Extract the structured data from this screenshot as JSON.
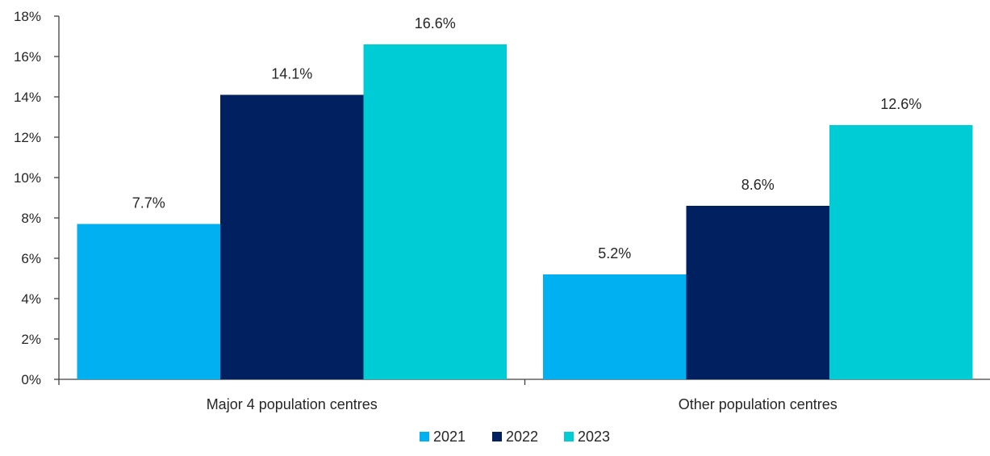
{
  "chart_data": {
    "type": "bar",
    "title": "",
    "xlabel": "",
    "ylabel": "",
    "categories": [
      "Major 4 population centres",
      "Other population centres"
    ],
    "series": [
      {
        "name": "2021",
        "color": "#00B0F0",
        "values": [
          7.7,
          5.2
        ],
        "labels": [
          "7.7%",
          "5.2%"
        ]
      },
      {
        "name": "2022",
        "color": "#002060",
        "values": [
          14.1,
          8.6
        ],
        "labels": [
          "14.1%",
          "8.6%"
        ]
      },
      {
        "name": "2023",
        "color": "#00CCD6",
        "values": [
          16.6,
          12.6
        ],
        "labels": [
          "16.6%",
          "12.6%"
        ]
      }
    ],
    "ylim": [
      0,
      18
    ],
    "yticks": [
      0,
      2,
      4,
      6,
      8,
      10,
      12,
      14,
      16,
      18
    ],
    "ytick_labels": [
      "0%",
      "2%",
      "4%",
      "6%",
      "8%",
      "10%",
      "12%",
      "14%",
      "16%",
      "18%"
    ],
    "grid": false,
    "legend_position": "bottom"
  }
}
